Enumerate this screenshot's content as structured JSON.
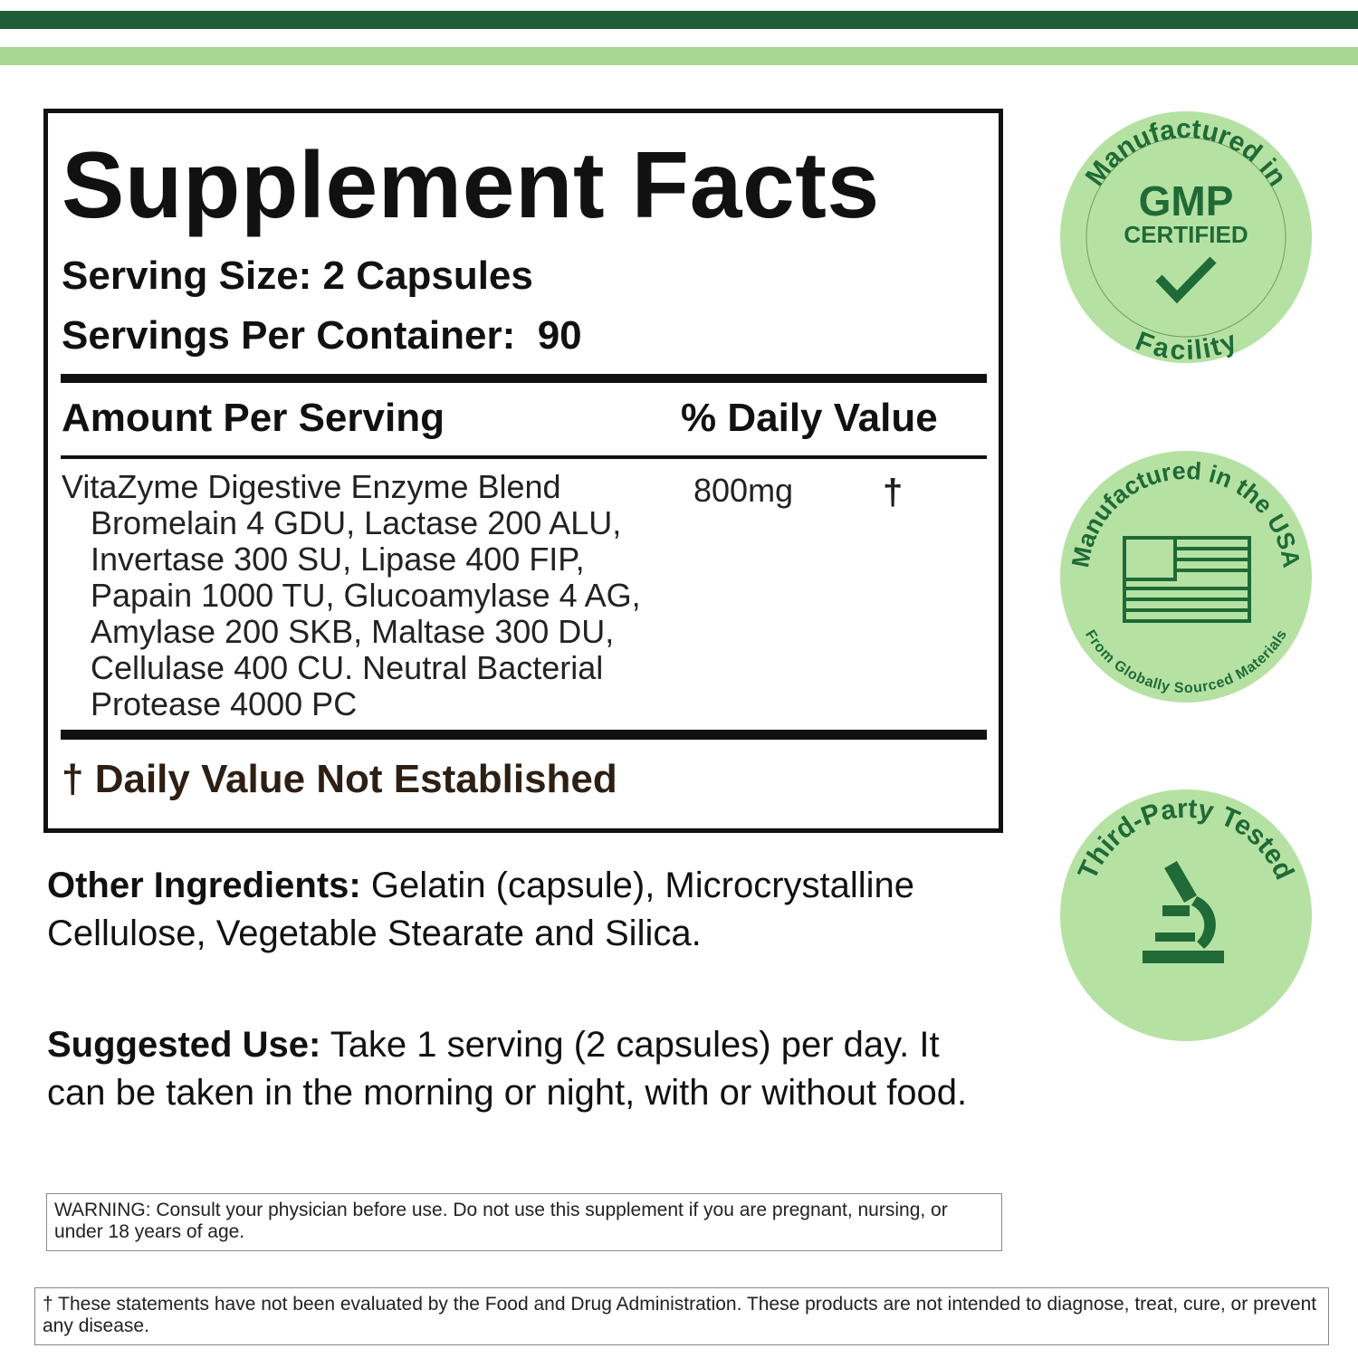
{
  "facts": {
    "title": "Supplement Facts",
    "serving_size": "Serving Size: 2 Capsules",
    "servings_per_container": "Servings Per Container:  90",
    "amount_header": "Amount Per Serving",
    "dv_header": "% Daily Value",
    "blend": {
      "name": "VitaZyme Digestive Enzyme Blend",
      "lines": [
        "Bromelain 4 GDU, Lactase 200 ALU,",
        "Invertase 300 SU, Lipase 400 FIP,",
        "Papain 1000 TU, Glucoamylase 4 AG,",
        "Amylase 200 SKB, Maltase 300 DU,",
        "Cellulase 400 CU. Neutral Bacterial",
        "Protease 4000 PC"
      ],
      "amount": "800mg",
      "dv": "†"
    },
    "footnote": "† Daily Value Not Established"
  },
  "other_ingredients": {
    "label": "Other Ingredients:",
    "text": "Gelatin (capsule), Microcrystalline Cellulose, Vegetable Stearate and Silica."
  },
  "suggested_use": {
    "label": "Suggested Use:",
    "text": "Take 1 serving (2 capsules) per day. It can be taken in the morning or night, with or without food."
  },
  "warning": "WARNING: Consult your physician before use. Do not use this supplement if you are pregnant, nursing, or under 18 years of age.",
  "disclaimer": "† These statements have not been evaluated by the Food and Drug Administration. These products are not intended to diagnose, treat, cure, or prevent any disease.",
  "badges": [
    {
      "top": "Manufactured in",
      "main": "GMP",
      "sub": "CERTIFIED",
      "bottom": "Facility"
    },
    {
      "top": "Manufactured in the USA",
      "bottom": "From Globally Sourced Materials"
    },
    {
      "top": "Third-Party Tested"
    }
  ]
}
